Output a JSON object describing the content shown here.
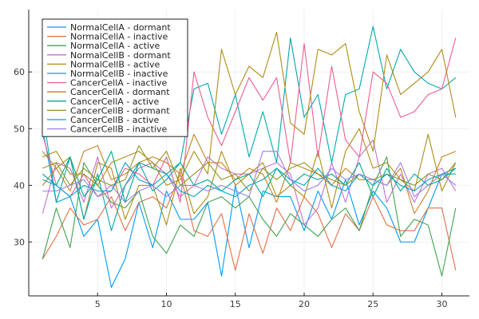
{
  "chart_data": {
    "type": "line",
    "title": "",
    "xlabel": "",
    "ylabel": "",
    "xlim": [
      0,
      32
    ],
    "ylim": [
      20.5,
      71
    ],
    "x_ticks": [
      5,
      10,
      15,
      20,
      25,
      30
    ],
    "y_ticks": [
      30,
      40,
      50,
      60
    ],
    "grid": true,
    "legend_position": "top-left",
    "x": [
      1,
      2,
      3,
      4,
      5,
      6,
      7,
      8,
      9,
      10,
      11,
      12,
      13,
      14,
      15,
      16,
      17,
      18,
      19,
      20,
      21,
      22,
      23,
      24,
      25,
      26,
      27,
      28,
      29,
      30,
      31
    ],
    "series": [
      {
        "name": "NormalCellA - dormant",
        "color": "#009AFA",
        "values": [
          50,
          37,
          38,
          31,
          34,
          22,
          27,
          37,
          29,
          39,
          34,
          34,
          37,
          24,
          40,
          29,
          39,
          38,
          38,
          32,
          39,
          34,
          41,
          33,
          39,
          36,
          30,
          30,
          36,
          42,
          43
        ]
      },
      {
        "name": "NormalCellA - inactive",
        "color": "#E36F47",
        "values": [
          27,
          31,
          36,
          33,
          34,
          38,
          32,
          37,
          38,
          36,
          42,
          32,
          31,
          35,
          25,
          35,
          28,
          36,
          32,
          38,
          35,
          29,
          35,
          32,
          38,
          33,
          32,
          32,
          36,
          36,
          25
        ]
      },
      {
        "name": "NormalCellA - active",
        "color": "#3EA44E",
        "values": [
          27,
          36,
          29,
          44,
          40,
          37,
          36,
          39,
          31,
          28,
          33,
          31,
          37,
          38,
          36,
          38,
          34,
          31,
          35,
          33,
          31,
          34,
          36,
          32,
          40,
          45,
          31,
          34,
          33,
          24,
          36
        ]
      },
      {
        "name": "NormalCellB - dormant",
        "color": "#C271D2",
        "values": [
          35,
          44,
          43,
          37,
          45,
          36,
          40,
          43,
          44,
          42,
          38,
          40,
          45,
          43,
          42,
          42,
          43,
          44,
          42,
          33,
          36,
          44,
          37,
          45,
          48,
          37,
          42,
          37,
          42,
          43,
          39
        ]
      },
      {
        "name": "NormalCellB - active",
        "color": "#AC8D18",
        "values": [
          46,
          43,
          45,
          34,
          44,
          43,
          34,
          40,
          40,
          33,
          43,
          35,
          38,
          46,
          40,
          42,
          44,
          38,
          40,
          38,
          46,
          36,
          46,
          50,
          43,
          44,
          41,
          39,
          49,
          39,
          44
        ]
      },
      {
        "name": "NormalCellB - inactive",
        "color": "#00A9AD",
        "values": [
          53,
          37,
          45,
          34,
          42,
          32,
          40,
          44,
          39,
          41,
          44,
          57,
          58,
          49,
          56,
          45,
          53,
          44,
          66,
          52,
          56,
          44,
          56,
          57,
          68,
          57,
          64,
          60,
          58,
          57,
          59
        ]
      },
      {
        "name": "CancerCellA - inactive",
        "color": "#ED5E93",
        "values": [
          49,
          40,
          38,
          42,
          38,
          39,
          43,
          42,
          40,
          45,
          37,
          60,
          52,
          47,
          53,
          59,
          55,
          59,
          44,
          65,
          45,
          61,
          48,
          45,
          60,
          58,
          52,
          53,
          56,
          57,
          66
        ]
      },
      {
        "name": "CancerCellA - dormant",
        "color": "#C68225",
        "values": [
          40,
          43,
          39,
          46,
          47,
          41,
          42,
          44,
          45,
          44,
          42,
          49,
          44,
          44,
          41,
          43,
          42,
          37,
          44,
          43,
          42,
          40,
          43,
          41,
          41,
          40,
          43,
          35,
          39,
          45,
          46
        ]
      },
      {
        "name": "CancerCellA - active",
        "color": "#00A98D",
        "values": [
          42,
          40,
          45,
          38,
          41,
          46,
          37,
          44,
          43,
          42,
          44,
          40,
          41,
          39,
          41,
          42,
          38,
          43,
          40,
          42,
          41,
          42,
          40,
          44,
          38,
          43,
          39,
          42,
          40,
          41,
          43
        ]
      },
      {
        "name": "CancerCellB - dormant",
        "color": "#8E971E",
        "values": [
          43,
          44,
          40,
          43,
          41,
          40,
          41,
          47,
          43,
          46,
          40,
          42,
          44,
          41,
          42,
          39,
          43,
          41,
          43,
          44,
          42,
          41,
          40,
          42,
          41,
          42,
          41,
          40,
          42,
          41,
          44
        ]
      },
      {
        "name": "CancerCellB - active",
        "color": "#00A8CB",
        "values": [
          41,
          40,
          38,
          40,
          39,
          39,
          44,
          41,
          40,
          42,
          39,
          38,
          40,
          39,
          38,
          40,
          41,
          43,
          41,
          40,
          43,
          40,
          39,
          42,
          40,
          42,
          40,
          39,
          41,
          42,
          42
        ]
      },
      {
        "name": "CancerCellB - inactive",
        "color": "#9B7FE9",
        "values": [
          39,
          39,
          40,
          41,
          38,
          40,
          37,
          39,
          40,
          38,
          40,
          40,
          39,
          40,
          39,
          38,
          46,
          46,
          41,
          39,
          40,
          43,
          41,
          42,
          41,
          40,
          44,
          38,
          40,
          42,
          40
        ]
      }
    ]
  },
  "extra_lines": [
    {
      "color": "#AC8D18",
      "values": [
        45,
        46,
        42,
        42,
        40,
        44,
        45,
        46,
        44,
        40,
        41,
        46,
        42,
        64,
        56,
        61,
        59,
        67,
        51,
        49,
        64,
        63,
        65,
        53,
        46,
        63,
        56,
        58,
        60,
        64,
        52
      ]
    }
  ]
}
